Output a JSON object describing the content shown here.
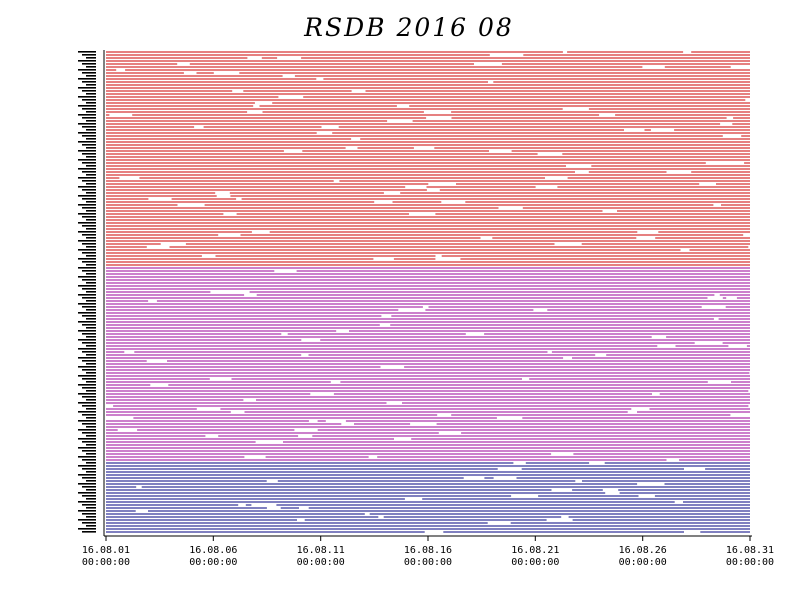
{
  "chart_data": {
    "type": "timeline",
    "title": "RSDB  2016  08",
    "x_range": [
      "16.08.01 00:00:00",
      "16.08.31 00:00:00"
    ],
    "x_ticks": [
      {
        "date": "16.08.01",
        "time": "00:00:00"
      },
      {
        "date": "16.08.06",
        "time": "00:00:00"
      },
      {
        "date": "16.08.11",
        "time": "00:00:00"
      },
      {
        "date": "16.08.16",
        "time": "00:00:00"
      },
      {
        "date": "16.08.21",
        "time": "00:00:00"
      },
      {
        "date": "16.08.26",
        "time": "00:00:00"
      },
      {
        "date": "16.08.31",
        "time": "00:00:00"
      }
    ],
    "groups": [
      {
        "color": "#cc0000",
        "rows": 72
      },
      {
        "color": "#990099",
        "rows": 65
      },
      {
        "color": "#000080",
        "rows": 24
      }
    ]
  }
}
